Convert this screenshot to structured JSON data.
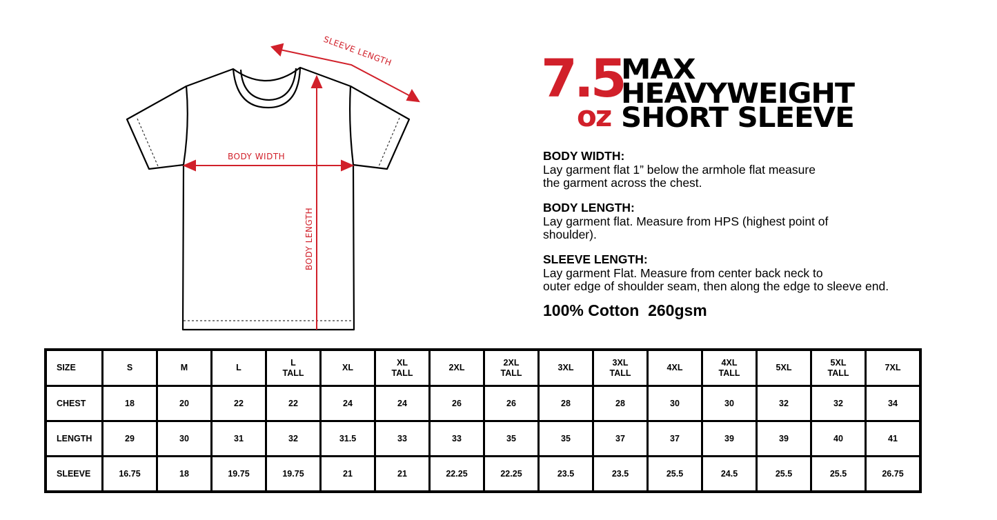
{
  "diagram": {
    "labels": {
      "sleeve_length": "SLEEVE LENGTH",
      "body_width": "BODY WIDTH",
      "body_length": "BODY LENGTH"
    },
    "accent_color": "#d1202a"
  },
  "hero": {
    "weight": "7.5",
    "unit": "oz",
    "lines": [
      "MAX",
      "HEAVYWEIGHT",
      "SHORT SLEEVE"
    ]
  },
  "specs": [
    {
      "title": "BODY WIDTH:",
      "lines": [
        "Lay garment flat 1” below the armhole flat measure",
        "the garment across the chest."
      ]
    },
    {
      "title": "BODY LENGTH:",
      "lines": [
        "Lay garment flat. Measure from HPS (highest point of",
        "shoulder)."
      ]
    },
    {
      "title": "SLEEVE LENGTH:",
      "lines": [
        "Lay garment Flat. Measure from center back neck to",
        "outer edge of shoulder seam, then along the edge to sleeve end."
      ]
    }
  ],
  "material": "100% Cotton  260gsm",
  "size_table": {
    "header": [
      "SIZE",
      "S",
      "M",
      "L",
      "L\nTALL",
      "XL",
      "XL\nTALL",
      "2XL",
      "2XL\nTALL",
      "3XL",
      "3XL\nTALL",
      "4XL",
      "4XL\nTALL",
      "5XL",
      "5XL\nTALL",
      "7XL"
    ],
    "rows": [
      [
        "CHEST",
        "18",
        "20",
        "22",
        "22",
        "24",
        "24",
        "26",
        "26",
        "28",
        "28",
        "30",
        "30",
        "32",
        "32",
        "34"
      ],
      [
        "LENGTH",
        "29",
        "30",
        "31",
        "32",
        "31.5",
        "33",
        "33",
        "35",
        "35",
        "37",
        "37",
        "39",
        "39",
        "40",
        "41"
      ],
      [
        "SLEEVE",
        "16.75",
        "18",
        "19.75",
        "19.75",
        "21",
        "21",
        "22.25",
        "22.25",
        "23.5",
        "23.5",
        "25.5",
        "24.5",
        "25.5",
        "25.5",
        "26.75"
      ]
    ]
  }
}
